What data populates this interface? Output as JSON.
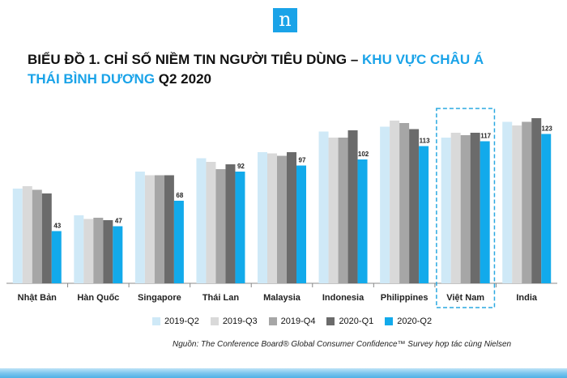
{
  "logo": {
    "letter": "n"
  },
  "title": {
    "line1_black": "BIỂU ĐỒ 1. CHỈ SỐ NIỀM TIN NGƯỜI TIÊU DÙNG – ",
    "line1_blue": "KHU VỰC CHÂU Á",
    "line2_blue": "THÁI BÌNH DƯƠNG",
    "line2_black": " Q2 2020"
  },
  "source": "Nguồn: The Conference Board® Global Consumer Confidence™ Survey hợp tác cùng Nielsen",
  "chart_data": {
    "type": "bar",
    "title": "BIỂU ĐỒ 1. CHỈ SỐ NIỀM TIN NGƯỜI TIÊU DÙNG – KHU VỰC CHÂU Á THÁI BÌNH DƯƠNG Q2 2020",
    "categories": [
      "Nhật Bản",
      "Hàn Quốc",
      "Singapore",
      "Thái Lan",
      "Malaysia",
      "Indonesia",
      "Philippines",
      "Việt Nam",
      "India"
    ],
    "highlight_category": "Việt Nam",
    "ylim": [
      0,
      140
    ],
    "grid": false,
    "legend_position": "bottom",
    "series": [
      {
        "name": "2019-Q2",
        "color": "#cfe9f7",
        "values": [
          78,
          56,
          92,
          103,
          108,
          125,
          129,
          120,
          133
        ]
      },
      {
        "name": "2019-Q3",
        "color": "#d9d9d9",
        "values": [
          80,
          53,
          89,
          100,
          107,
          120,
          134,
          124,
          130
        ]
      },
      {
        "name": "2019-Q4",
        "color": "#a6a6a6",
        "values": [
          77,
          54,
          89,
          94,
          105,
          120,
          132,
          122,
          133
        ]
      },
      {
        "name": "2020-Q1",
        "color": "#6b6b6b",
        "values": [
          74,
          52,
          89,
          98,
          108,
          126,
          127,
          124,
          136
        ]
      },
      {
        "name": "2020-Q2",
        "color": "#12aaeb",
        "values": [
          43,
          47,
          68,
          92,
          97,
          102,
          113,
          117,
          123
        ]
      }
    ]
  }
}
